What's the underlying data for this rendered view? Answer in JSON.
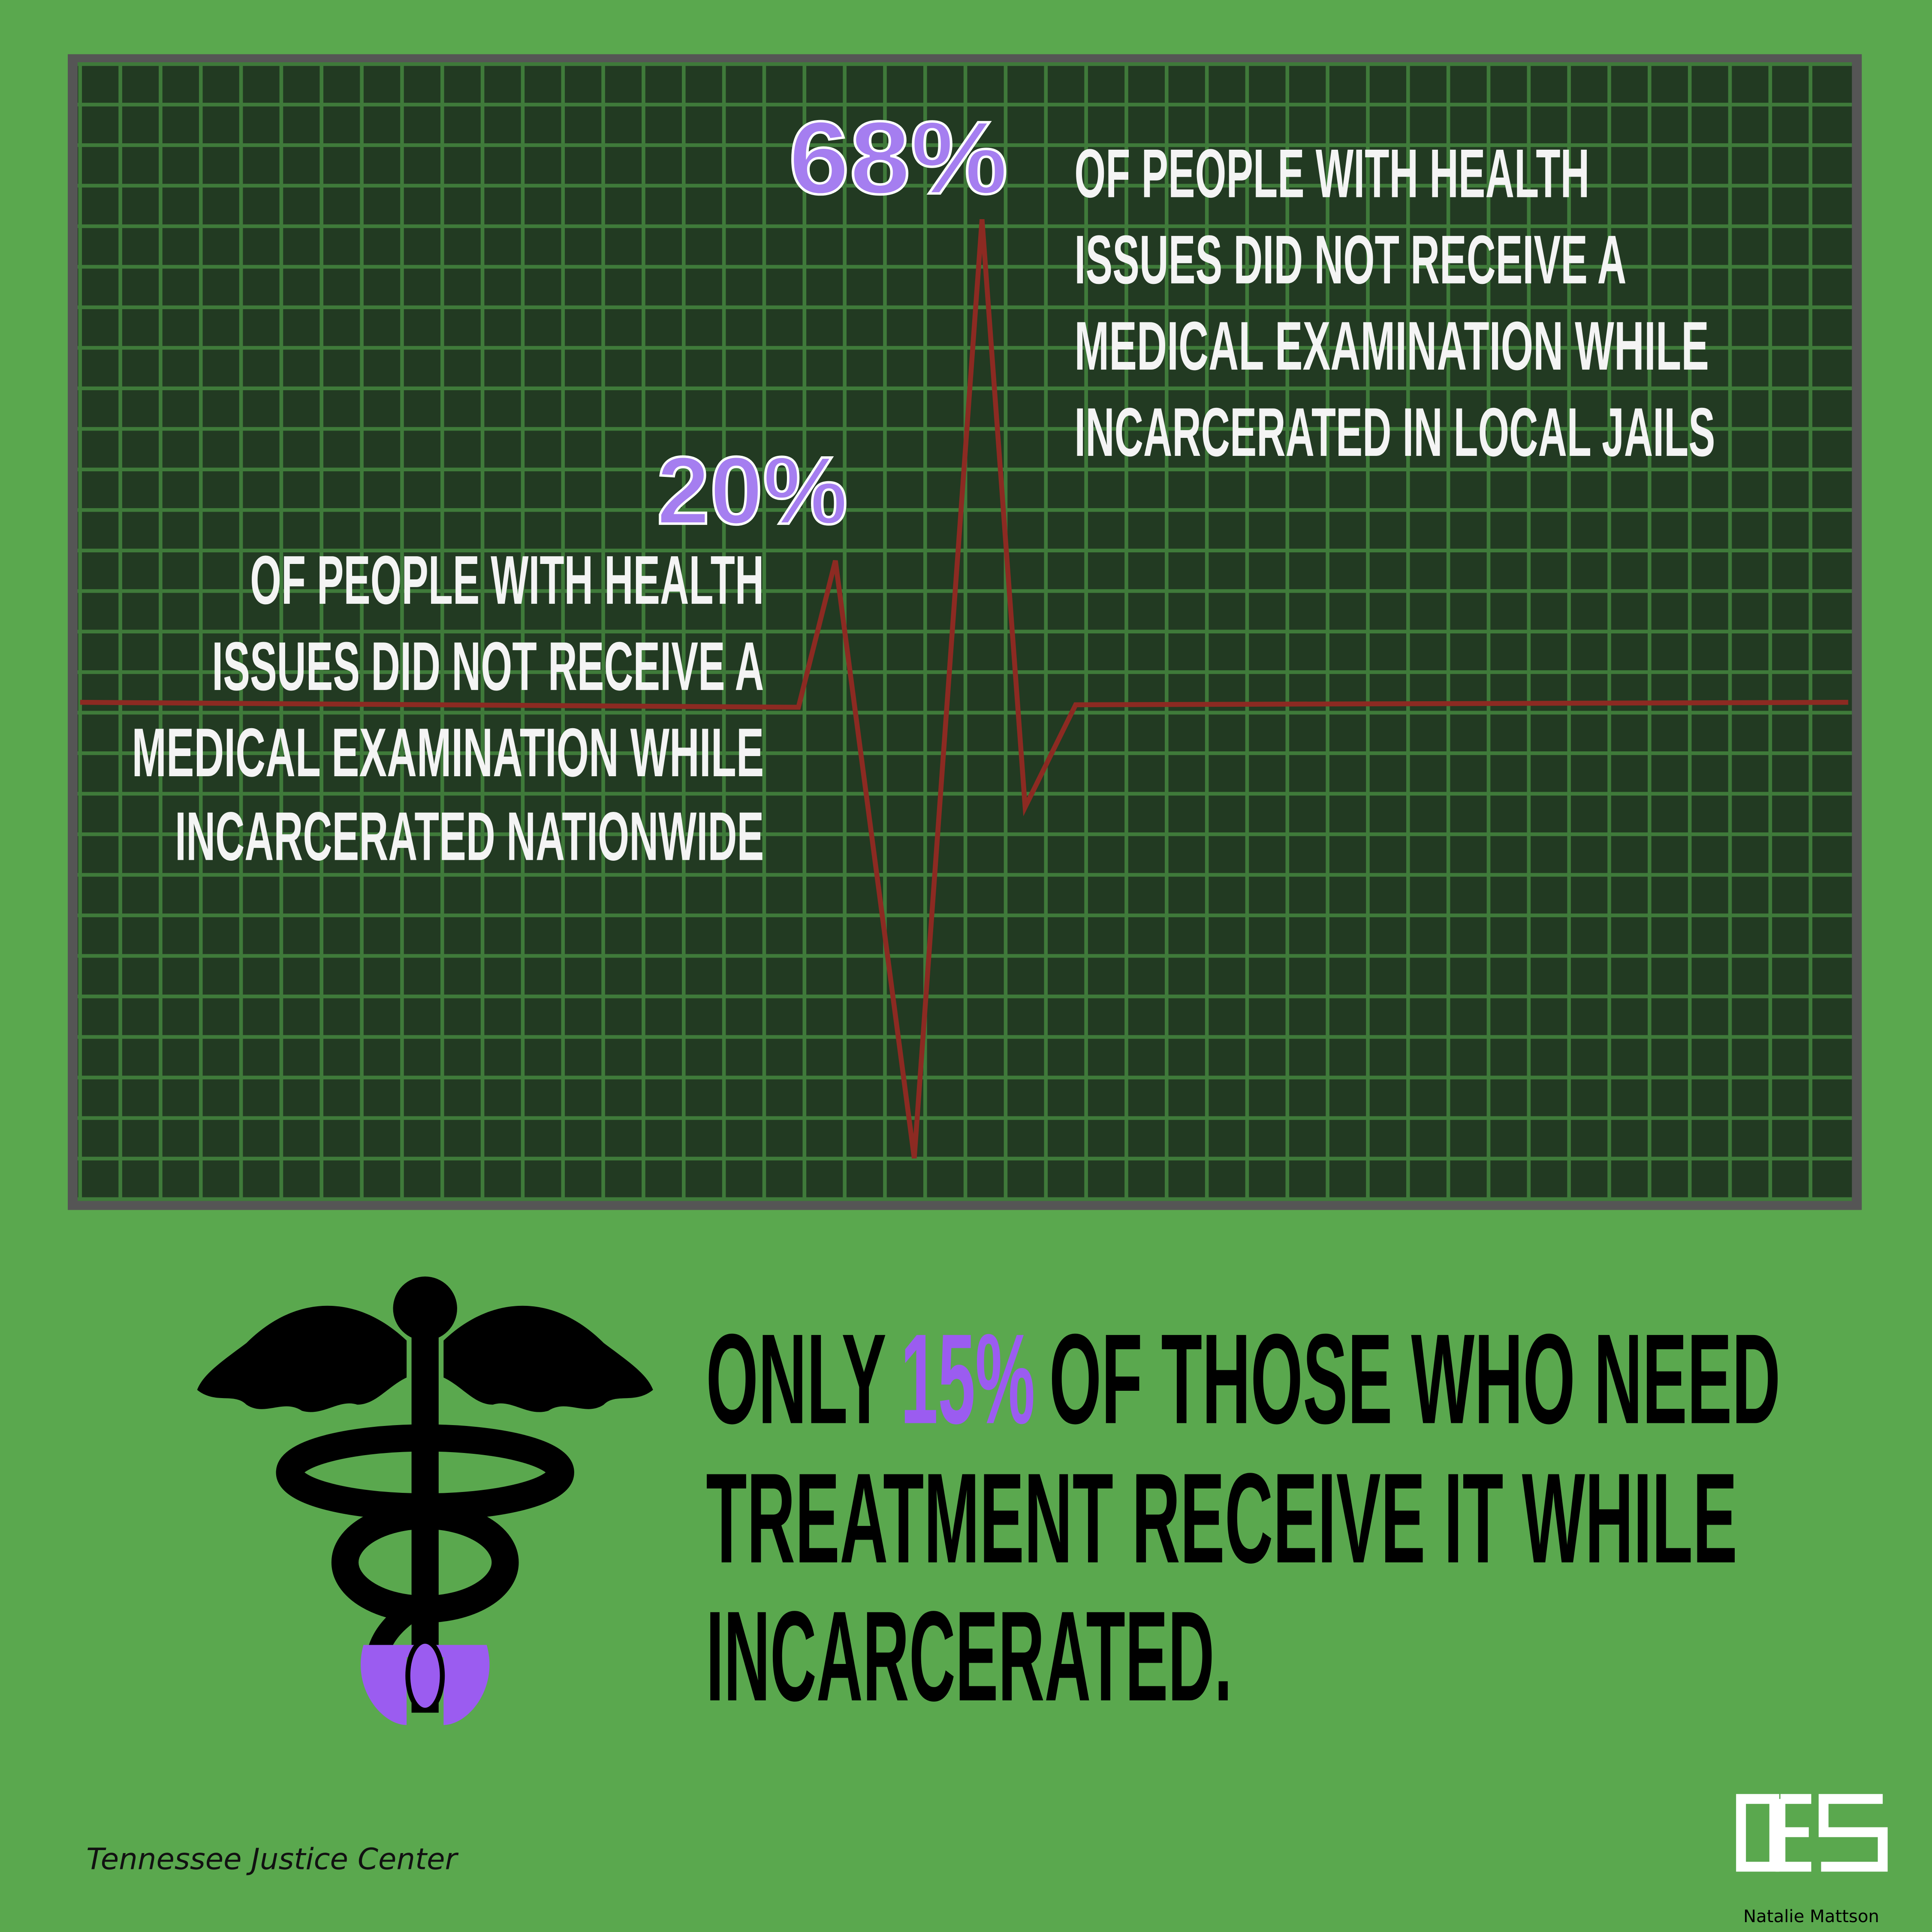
{
  "stats": [
    {
      "figure": "68%",
      "lines": [
        "OF PEOPLE WITH HEALTH",
        "ISSUES DID NOT RECEIVE A",
        "MEDICAL EXAMINATION WHILE",
        "INCARCERATED IN LOCAL JAILS"
      ]
    },
    {
      "figure": "20%",
      "lines": [
        "OF PEOPLE WITH HEALTH",
        "ISSUES DID NOT RECEIVE A",
        "MEDICAL EXAMINATION WHILE",
        "INCARCERATED NATIONWIDE"
      ]
    }
  ],
  "callout": {
    "lines": [
      [
        "ONLY",
        "15%",
        "OF THOSE WHO NEED"
      ],
      [
        "TREATMENT RECEIVE IT WHILE"
      ],
      [
        "INCARCERATED."
      ]
    ]
  },
  "source": "Tennessee Justice Center",
  "credit": "Natalie Mattson"
}
